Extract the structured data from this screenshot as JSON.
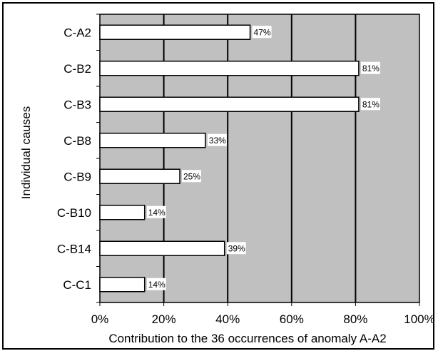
{
  "chart_data": {
    "type": "bar",
    "orientation": "horizontal",
    "categories": [
      "C-A2",
      "C-B2",
      "C-B3",
      "C-B8",
      "C-B9",
      "C-B10",
      "C-B14",
      "C-C1"
    ],
    "values": [
      47,
      81,
      81,
      33,
      25,
      14,
      39,
      14
    ],
    "data_labels": [
      "47%",
      "81%",
      "81%",
      "33%",
      "25%",
      "14%",
      "39%",
      "14%"
    ],
    "xlabel": "Contribution to the 36 occurrences of anomaly A-A2",
    "ylabel": "Individual causes",
    "xlim": [
      0,
      100
    ],
    "x_ticks": [
      0,
      20,
      40,
      60,
      80,
      100
    ],
    "x_tick_labels": [
      "0%",
      "20%",
      "40%",
      "60%",
      "80%",
      "100%"
    ],
    "grid": "vertical",
    "legend": "none",
    "colors": {
      "plot_background": "#c0c0c0",
      "bar_fill": "#ffffff",
      "bar_stroke": "#000000",
      "grid": "#000000",
      "label_background": "#ffffff"
    }
  }
}
